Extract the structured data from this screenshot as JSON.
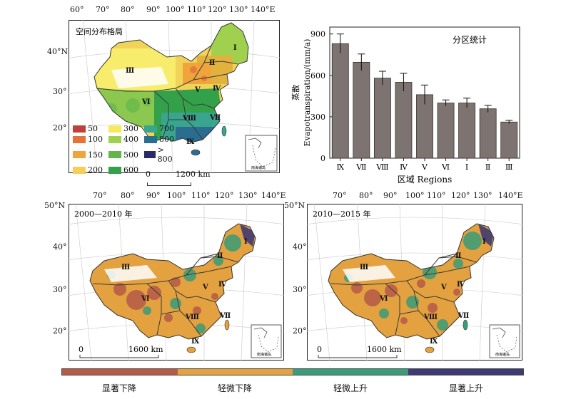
{
  "colors": {
    "sig_decrease": "#b65a48",
    "slight_decrease": "#e3a13f",
    "slight_increase": "#3a9c7a",
    "sig_increase": "#3e3a73",
    "bar_fill": "#7d7371",
    "bar_edge": "#3a3230",
    "region_boundary": "#3a3a3a"
  },
  "top_map": {
    "title": "空间分布格局",
    "lon_labels": [
      "60°",
      "70°",
      "80°",
      "90°",
      "100°",
      "110°",
      "120°",
      "130°",
      "140°E"
    ],
    "lat_labels": [
      "40°N",
      "30°",
      "20°"
    ],
    "scale_zero": "0",
    "scale_label": "1200 km",
    "inset_label": "南海诸岛",
    "legend": [
      {
        "label": "50",
        "color": "#c0413a"
      },
      {
        "label": "300",
        "color": "#f4ea5a"
      },
      {
        "label": "700",
        "color": "#3aa58e"
      },
      {
        "label": "100",
        "color": "#e2733a"
      },
      {
        "label": "400",
        "color": "#9fd04e"
      },
      {
        "label": "800",
        "color": "#2b6d8e"
      },
      {
        "label": "150",
        "color": "#f0a53b"
      },
      {
        "label": "500",
        "color": "#63b64a"
      },
      {
        "label": "> 800",
        "color": "#2a2a66"
      },
      {
        "label": "200",
        "color": "#f7cf57"
      },
      {
        "label": "600",
        "color": "#33a04a"
      }
    ],
    "regions": [
      "Ⅰ",
      "Ⅱ",
      "Ⅲ",
      "Ⅳ",
      "Ⅴ",
      "Ⅵ",
      "Ⅶ",
      "Ⅷ",
      "Ⅸ"
    ]
  },
  "chart_data": {
    "type": "bar",
    "title": "分区统计",
    "categories": [
      "Ⅸ",
      "Ⅶ",
      "Ⅷ",
      "Ⅳ",
      "Ⅴ",
      "Ⅵ",
      "Ⅰ",
      "Ⅱ",
      "Ⅲ"
    ],
    "values": [
      830,
      695,
      580,
      550,
      460,
      400,
      400,
      358,
      262
    ],
    "errors": [
      70,
      60,
      50,
      65,
      70,
      22,
      35,
      25,
      12
    ],
    "ylabel_cn": "蒸散",
    "ylabel_en": "Evapotranspiration/(mm/a)",
    "xlabel": "区域 Regions",
    "ylim": [
      0,
      950
    ],
    "yticks": [
      "0",
      "300",
      "600",
      "900"
    ]
  },
  "bottom_left": {
    "title": "2000—2010 年",
    "lon_labels": [
      "70°",
      "80°",
      "90°",
      "100°",
      "110°",
      "120°",
      "130°",
      "140°E"
    ],
    "lat_labels": [
      "50°N",
      "40°",
      "30°",
      "20°"
    ],
    "scale_zero": "0",
    "scale_label": "1600 km",
    "inset_label": "南海诸岛"
  },
  "bottom_right": {
    "title": "2010—2015 年",
    "lon_labels": [
      "70°",
      "80°",
      "90°",
      "100°",
      "110°",
      "120°",
      "130°",
      "140°E"
    ],
    "lat_labels": [
      "50°N",
      "40°",
      "30°",
      "20°"
    ],
    "scale_zero": "0",
    "scale_label": "1600 km",
    "inset_label": "南海诸岛"
  },
  "trend_legend": [
    "显著下降",
    "轻微下降",
    "轻微上升",
    "显著上升"
  ]
}
